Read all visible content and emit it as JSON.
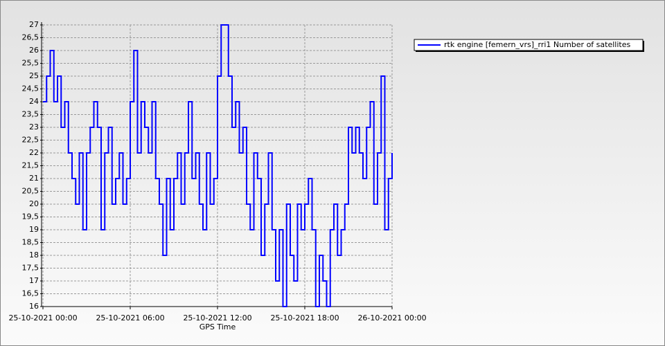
{
  "chart_data": {
    "type": "line",
    "step": "post",
    "xlabel": "GPS Time",
    "x": [
      "2021-10-25T00:00",
      "2021-10-25T00:15",
      "2021-10-25T00:30",
      "2021-10-25T00:45",
      "2021-10-25T01:00",
      "2021-10-25T01:15",
      "2021-10-25T01:30",
      "2021-10-25T01:45",
      "2021-10-25T02:00",
      "2021-10-25T02:15",
      "2021-10-25T02:30",
      "2021-10-25T02:45",
      "2021-10-25T03:00",
      "2021-10-25T03:15",
      "2021-10-25T03:30",
      "2021-10-25T03:45",
      "2021-10-25T04:00",
      "2021-10-25T04:15",
      "2021-10-25T04:30",
      "2021-10-25T04:45",
      "2021-10-25T05:00",
      "2021-10-25T05:15",
      "2021-10-25T05:30",
      "2021-10-25T05:45",
      "2021-10-25T06:00",
      "2021-10-25T06:15",
      "2021-10-25T06:30",
      "2021-10-25T06:45",
      "2021-10-25T07:00",
      "2021-10-25T07:15",
      "2021-10-25T07:30",
      "2021-10-25T07:45",
      "2021-10-25T08:00",
      "2021-10-25T08:15",
      "2021-10-25T08:30",
      "2021-10-25T08:45",
      "2021-10-25T09:00",
      "2021-10-25T09:15",
      "2021-10-25T09:30",
      "2021-10-25T09:45",
      "2021-10-25T10:00",
      "2021-10-25T10:15",
      "2021-10-25T10:30",
      "2021-10-25T10:45",
      "2021-10-25T11:00",
      "2021-10-25T11:15",
      "2021-10-25T11:30",
      "2021-10-25T11:45",
      "2021-10-25T12:00",
      "2021-10-25T12:15",
      "2021-10-25T12:30",
      "2021-10-25T12:45",
      "2021-10-25T13:00",
      "2021-10-25T13:15",
      "2021-10-25T13:30",
      "2021-10-25T13:45",
      "2021-10-25T14:00",
      "2021-10-25T14:15",
      "2021-10-25T14:30",
      "2021-10-25T14:45",
      "2021-10-25T15:00",
      "2021-10-25T15:15",
      "2021-10-25T15:30",
      "2021-10-25T15:45",
      "2021-10-25T16:00",
      "2021-10-25T16:15",
      "2021-10-25T16:30",
      "2021-10-25T16:45",
      "2021-10-25T17:00",
      "2021-10-25T17:15",
      "2021-10-25T17:30",
      "2021-10-25T17:45",
      "2021-10-25T18:00",
      "2021-10-25T18:15",
      "2021-10-25T18:30",
      "2021-10-25T18:45",
      "2021-10-25T19:00",
      "2021-10-25T19:15",
      "2021-10-25T19:30",
      "2021-10-25T19:45",
      "2021-10-25T20:00",
      "2021-10-25T20:15",
      "2021-10-25T20:30",
      "2021-10-25T20:45",
      "2021-10-25T21:00",
      "2021-10-25T21:15",
      "2021-10-25T21:30",
      "2021-10-25T21:45",
      "2021-10-25T22:00",
      "2021-10-25T22:15",
      "2021-10-25T22:30",
      "2021-10-25T22:45",
      "2021-10-25T23:00",
      "2021-10-25T23:15",
      "2021-10-25T23:30",
      "2021-10-25T23:45",
      "2021-10-26T00:00"
    ],
    "series": [
      {
        "name": "rtk engine [femern_vrs]_rri1 Number of satellites",
        "color": "#0000ff",
        "values": [
          24,
          25,
          26,
          24,
          25,
          23,
          24,
          22,
          21,
          20,
          22,
          19,
          22,
          23,
          24,
          23,
          19,
          22,
          23,
          20,
          21,
          22,
          20,
          21,
          24,
          26,
          22,
          24,
          23,
          22,
          24,
          21,
          20,
          18,
          21,
          19,
          21,
          22,
          20,
          22,
          24,
          21,
          22,
          20,
          19,
          22,
          20,
          21,
          25,
          27,
          27,
          25,
          23,
          24,
          22,
          23,
          20,
          19,
          22,
          21,
          18,
          20,
          22,
          19,
          17,
          19,
          16,
          20,
          18,
          17,
          20,
          19,
          20,
          21,
          19,
          16,
          18,
          17,
          16,
          19,
          20,
          18,
          19,
          20,
          23,
          22,
          23,
          22,
          21,
          23,
          24,
          20,
          22,
          25,
          19,
          21,
          22
        ]
      }
    ],
    "xlim": [
      "2021-10-25T00:00",
      "2021-10-26T00:00"
    ],
    "xticks": [
      {
        "value": "2021-10-25T00:00",
        "label": "25-10-2021 00:00"
      },
      {
        "value": "2021-10-25T06:00",
        "label": "25-10-2021 06:00"
      },
      {
        "value": "2021-10-25T12:00",
        "label": "25-10-2021 12:00"
      },
      {
        "value": "2021-10-25T18:00",
        "label": "25-10-2021 18:00"
      },
      {
        "value": "2021-10-26T00:00",
        "label": "26-10-2021 00:00"
      }
    ],
    "ylim": [
      16,
      27
    ],
    "yticks": [
      16,
      {
        "value": 16.5,
        "label": "16,5"
      },
      17,
      {
        "value": 17.5,
        "label": "17,5"
      },
      18,
      {
        "value": 18.5,
        "label": "18,5"
      },
      19,
      {
        "value": 19.5,
        "label": "19,5"
      },
      20,
      {
        "value": 20.5,
        "label": "20,5"
      },
      21,
      {
        "value": 21.5,
        "label": "21,5"
      },
      22,
      {
        "value": 22.5,
        "label": "22,5"
      },
      23,
      {
        "value": 23.5,
        "label": "23,5"
      },
      24,
      {
        "value": 24.5,
        "label": "24,5"
      },
      25,
      {
        "value": 25.5,
        "label": "25,5"
      },
      26,
      {
        "value": 26.5,
        "label": "26,5"
      },
      27
    ],
    "grid": true,
    "legend": "top-right"
  }
}
